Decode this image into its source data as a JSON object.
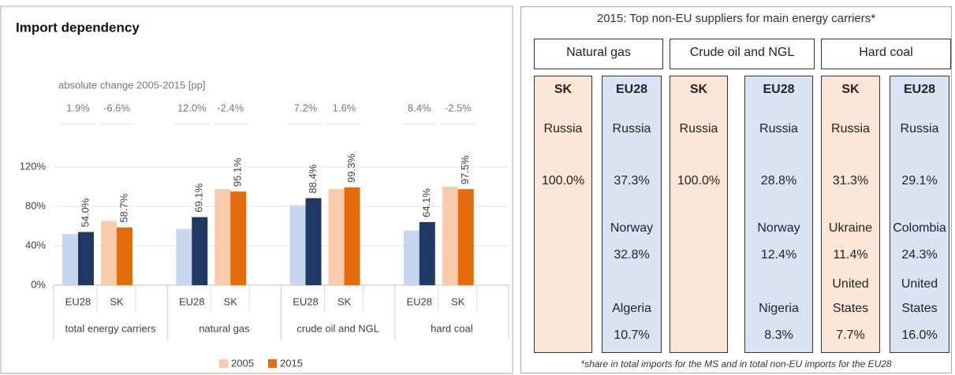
{
  "chart_data": {
    "type": "bar",
    "title": "Import dependency",
    "annotation": "absolute change 2005-2015 [pp]",
    "change_labels": [
      "1.9%",
      "-6.6%",
      "12.0%",
      "-2.4%",
      "7.2%",
      "1.6%",
      "8.4%",
      "-2.5%"
    ],
    "groups": [
      "total energy carriers",
      "natural gas",
      "crude oil and NGL",
      "hard coal"
    ],
    "categories": [
      "EU28",
      "SK",
      "EU28",
      "SK",
      "EU28",
      "SK",
      "EU28",
      "SK"
    ],
    "series": [
      {
        "name": "2005",
        "color": "#f8cbad",
        "colors": [
          "#c6d6ef",
          "#f8cbad",
          "#c6d6ef",
          "#f8cbad",
          "#c6d6ef",
          "#f8cbad",
          "#c6d6ef",
          "#f8cbad"
        ],
        "values": [
          52.1,
          65.3,
          57.1,
          97.5,
          81.2,
          97.7,
          55.7,
          100.0
        ]
      },
      {
        "name": "2015",
        "color": "#e46c0a",
        "colors": [
          "#1f3864",
          "#e46c0a",
          "#1f3864",
          "#e46c0a",
          "#1f3864",
          "#e46c0a",
          "#1f3864",
          "#e46c0a"
        ],
        "values": [
          54.0,
          58.7,
          69.1,
          95.1,
          88.4,
          99.3,
          64.1,
          97.5
        ],
        "value_labels": [
          "54.0%",
          "58.7%",
          "69.1%",
          "95.1%",
          "88.4%",
          "99.3%",
          "64.1%",
          "97.5%"
        ]
      }
    ],
    "ylim": [
      0,
      120
    ],
    "yticks": [
      {
        "value": 0,
        "label": "0%"
      },
      {
        "value": 40,
        "label": "40%"
      },
      {
        "value": 80,
        "label": "80%"
      },
      {
        "value": 120,
        "label": "120%"
      }
    ],
    "grid": true,
    "legend": "bottom"
  },
  "table": {
    "title": "2015: Top non-EU suppliers for main energy carriers*",
    "carriers": [
      "Natural gas",
      "Crude oil and NGL",
      "Hard coal"
    ],
    "columns": [
      {
        "header": "SK",
        "suppliers": [
          {
            "name": "Russia",
            "share": "100.0%"
          }
        ]
      },
      {
        "header": "EU28",
        "suppliers": [
          {
            "name": "Russia",
            "share": "37.3%"
          },
          {
            "name": "Norway",
            "share": "32.8%"
          },
          {
            "name": "Algeria",
            "share": "10.7%"
          }
        ]
      },
      {
        "header": "SK",
        "suppliers": [
          {
            "name": "Russia",
            "share": "100.0%"
          }
        ]
      },
      {
        "header": "EU28",
        "suppliers": [
          {
            "name": "Russia",
            "share": "28.8%"
          },
          {
            "name": "Norway",
            "share": "12.4%"
          },
          {
            "name": "Nigeria",
            "share": "8.3%"
          }
        ]
      },
      {
        "header": "SK",
        "suppliers": [
          {
            "name": "Russia",
            "share": "31.3%"
          },
          {
            "name": "Ukraine",
            "share": "11.4%"
          },
          {
            "name": "United States",
            "share": "7.7%"
          }
        ]
      },
      {
        "header": "EU28",
        "suppliers": [
          {
            "name": "Russia",
            "share": "29.1%"
          },
          {
            "name": "Colombia",
            "share": "24.3%"
          },
          {
            "name": "United States",
            "share": "16.0%"
          }
        ]
      }
    ],
    "footnote": "*share in total imports for the MS and in total non-EU imports for the EU28"
  }
}
